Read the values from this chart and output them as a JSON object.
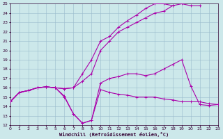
{
  "bg_color": "#cce8ea",
  "line_color": "#aa00aa",
  "grid_color": "#99bbcc",
  "xlabel": "Windchill (Refroidissement éolien,°C)",
  "ylim": [
    12,
    25
  ],
  "xlim": [
    0,
    23
  ],
  "yticks": [
    12,
    13,
    14,
    15,
    16,
    17,
    18,
    19,
    20,
    21,
    22,
    23,
    24,
    25
  ],
  "xticks": [
    0,
    1,
    2,
    3,
    4,
    5,
    6,
    7,
    8,
    9,
    10,
    11,
    12,
    13,
    14,
    15,
    16,
    17,
    18,
    19,
    20,
    21,
    22,
    23
  ],
  "series": [
    {
      "x": [
        0,
        1,
        2,
        3,
        4,
        5,
        6,
        7,
        8,
        9,
        10,
        11,
        12,
        13,
        14,
        15,
        16,
        17,
        18,
        19,
        20,
        21,
        22,
        23
      ],
      "y": [
        14.5,
        15.5,
        15.7,
        16.0,
        16.1,
        16.0,
        15.1,
        13.2,
        12.2,
        12.5,
        15.8,
        15.5,
        15.3,
        15.2,
        15.0,
        15.0,
        15.0,
        14.8,
        14.7,
        14.5,
        14.5,
        14.5,
        14.3,
        14.2
      ]
    },
    {
      "x": [
        0,
        1,
        2,
        3,
        4,
        5,
        6,
        7,
        8,
        9,
        10,
        11,
        12,
        13,
        14,
        15,
        16,
        17,
        18,
        19,
        20,
        21,
        22,
        23
      ],
      "y": [
        14.5,
        15.5,
        15.7,
        16.0,
        16.1,
        16.0,
        15.0,
        13.2,
        12.2,
        12.5,
        16.5,
        17.0,
        17.2,
        17.5,
        17.5,
        17.3,
        17.5,
        18.0,
        18.5,
        19.0,
        16.2,
        14.2,
        14.1,
        14.2
      ]
    },
    {
      "x": [
        0,
        1,
        2,
        3,
        4,
        5,
        6,
        7,
        8,
        9,
        10,
        11,
        12,
        13,
        14,
        15,
        16,
        17,
        18,
        19,
        20,
        21
      ],
      "y": [
        14.5,
        15.5,
        15.7,
        16.0,
        16.1,
        16.0,
        15.9,
        16.0,
        16.7,
        17.5,
        20.0,
        21.0,
        22.0,
        22.5,
        23.0,
        23.5,
        24.0,
        24.2,
        24.8,
        25.0,
        24.8,
        24.8
      ]
    },
    {
      "x": [
        0,
        1,
        2,
        3,
        4,
        5,
        6,
        7,
        8,
        9,
        10,
        11,
        12,
        13,
        14,
        15,
        16,
        17,
        18
      ],
      "y": [
        14.5,
        15.5,
        15.7,
        16.0,
        16.1,
        16.0,
        15.9,
        16.0,
        17.5,
        19.0,
        21.0,
        21.5,
        22.5,
        23.2,
        23.8,
        24.5,
        25.0,
        25.0,
        24.8
      ]
    }
  ]
}
